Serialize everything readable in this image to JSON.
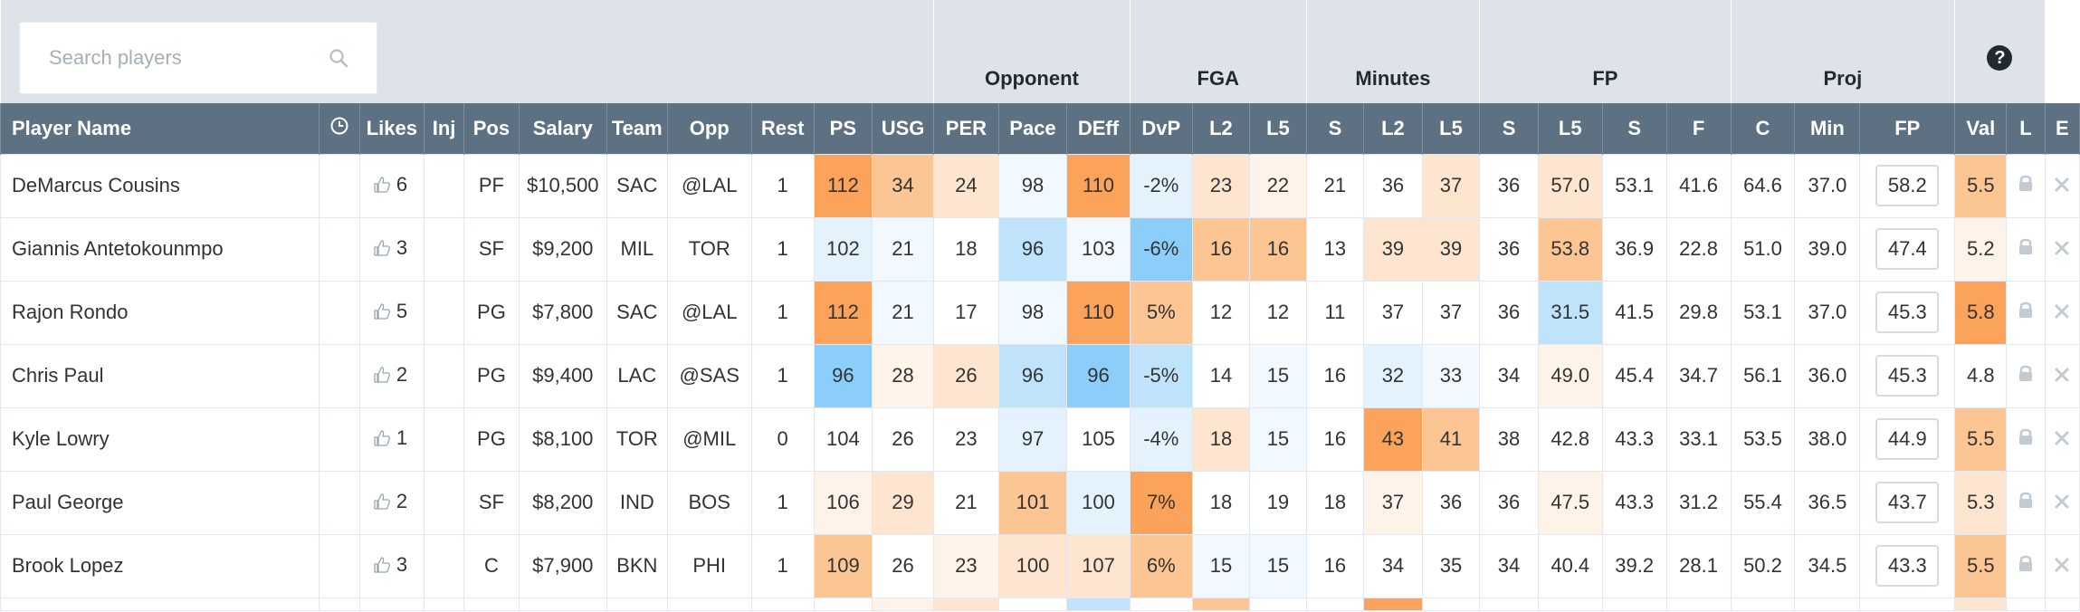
{
  "search": {
    "placeholder": "Search players"
  },
  "icons": {
    "search": "search-icon",
    "help": "help-icon",
    "clock": "clock-icon",
    "likes": "thumbs-up-icon",
    "lock": "lock-icon",
    "exclude": "close-icon"
  },
  "groups": {
    "opponent": "Opponent",
    "fga": "FGA",
    "minutes": "Minutes",
    "fp": "FP",
    "proj": "Proj",
    "help": "?"
  },
  "columns": {
    "name": "Player Name",
    "likes": "Likes",
    "inj": "Inj",
    "pos": "Pos",
    "salary": "Salary",
    "team": "Team",
    "opp": "Opp",
    "rest": "Rest",
    "ps": "PS",
    "usg": "USG",
    "per": "PER",
    "pace": "Pace",
    "deff": "DEff",
    "dvp": "DvP",
    "fga_l2": "L2",
    "fga_l5": "L5",
    "fga_s": "S",
    "min_l2": "L2",
    "min_l5": "L5",
    "min_s": "S",
    "fp_l5": "L5",
    "fp_s": "S",
    "fp_f": "F",
    "fp_c": "C",
    "proj_min": "Min",
    "proj_fp": "FP",
    "val": "Val",
    "lock": "L",
    "exclude": "E"
  },
  "colors": {
    "orange_dark": "#fba35a",
    "orange_mid": "#fcc594",
    "orange_light": "#fde5cf",
    "orange_faint": "#fef3e8",
    "blue_dark": "#8ccefa",
    "blue_mid": "#bee3fb",
    "blue_light": "#e4f2fd",
    "blue_faint": "#f2f9fe",
    "header_bg": "#5e7182",
    "group_bg": "#dde3e8"
  },
  "players": [
    {
      "name": "DeMarcus Cousins",
      "likes": "6",
      "inj": "",
      "pos": "PF",
      "salary": "$10,500",
      "team": "SAC",
      "opp": "@LAL",
      "rest": "1",
      "ps": "112",
      "usg": "34",
      "per": "24",
      "pace": "98",
      "deff": "110",
      "dvp": "-2%",
      "fga_l2": "23",
      "fga_l5": "22",
      "fga_s": "21",
      "min_l2": "36",
      "min_l5": "37",
      "min_s": "36",
      "fp_l5": "57.0",
      "fp_s": "53.1",
      "fp_f": "41.6",
      "fp_c": "64.6",
      "proj_min": "37.0",
      "proj_fp": "58.2",
      "val": "5.5"
    },
    {
      "name": "Giannis Antetokounmpo",
      "likes": "3",
      "inj": "",
      "pos": "SF",
      "salary": "$9,200",
      "team": "MIL",
      "opp": "TOR",
      "rest": "1",
      "ps": "102",
      "usg": "21",
      "per": "18",
      "pace": "96",
      "deff": "103",
      "dvp": "-6%",
      "fga_l2": "16",
      "fga_l5": "16",
      "fga_s": "13",
      "min_l2": "39",
      "min_l5": "39",
      "min_s": "36",
      "fp_l5": "53.8",
      "fp_s": "36.9",
      "fp_f": "22.8",
      "fp_c": "51.0",
      "proj_min": "39.0",
      "proj_fp": "47.4",
      "val": "5.2"
    },
    {
      "name": "Rajon Rondo",
      "likes": "5",
      "inj": "",
      "pos": "PG",
      "salary": "$7,800",
      "team": "SAC",
      "opp": "@LAL",
      "rest": "1",
      "ps": "112",
      "usg": "21",
      "per": "17",
      "pace": "98",
      "deff": "110",
      "dvp": "5%",
      "fga_l2": "12",
      "fga_l5": "12",
      "fga_s": "11",
      "min_l2": "37",
      "min_l5": "37",
      "min_s": "36",
      "fp_l5": "31.5",
      "fp_s": "41.5",
      "fp_f": "29.8",
      "fp_c": "53.1",
      "proj_min": "37.0",
      "proj_fp": "45.3",
      "val": "5.8"
    },
    {
      "name": "Chris Paul",
      "likes": "2",
      "inj": "",
      "pos": "PG",
      "salary": "$9,400",
      "team": "LAC",
      "opp": "@SAS",
      "rest": "1",
      "ps": "96",
      "usg": "28",
      "per": "26",
      "pace": "96",
      "deff": "96",
      "dvp": "-5%",
      "fga_l2": "14",
      "fga_l5": "15",
      "fga_s": "16",
      "min_l2": "32",
      "min_l5": "33",
      "min_s": "34",
      "fp_l5": "49.0",
      "fp_s": "45.4",
      "fp_f": "34.7",
      "fp_c": "56.1",
      "proj_min": "36.0",
      "proj_fp": "45.3",
      "val": "4.8"
    },
    {
      "name": "Kyle Lowry",
      "likes": "1",
      "inj": "",
      "pos": "PG",
      "salary": "$8,100",
      "team": "TOR",
      "opp": "@MIL",
      "rest": "0",
      "ps": "104",
      "usg": "26",
      "per": "23",
      "pace": "97",
      "deff": "105",
      "dvp": "-4%",
      "fga_l2": "18",
      "fga_l5": "15",
      "fga_s": "16",
      "min_l2": "43",
      "min_l5": "41",
      "min_s": "38",
      "fp_l5": "42.8",
      "fp_s": "43.3",
      "fp_f": "33.1",
      "fp_c": "53.5",
      "proj_min": "38.0",
      "proj_fp": "44.9",
      "val": "5.5"
    },
    {
      "name": "Paul George",
      "likes": "2",
      "inj": "",
      "pos": "SF",
      "salary": "$8,200",
      "team": "IND",
      "opp": "BOS",
      "rest": "1",
      "ps": "106",
      "usg": "29",
      "per": "21",
      "pace": "101",
      "deff": "100",
      "dvp": "7%",
      "fga_l2": "18",
      "fga_l5": "19",
      "fga_s": "18",
      "min_l2": "37",
      "min_l5": "36",
      "min_s": "36",
      "fp_l5": "47.5",
      "fp_s": "43.3",
      "fp_f": "31.2",
      "fp_c": "55.4",
      "proj_min": "36.5",
      "proj_fp": "43.7",
      "val": "5.3"
    },
    {
      "name": "Brook Lopez",
      "likes": "3",
      "inj": "",
      "pos": "C",
      "salary": "$7,900",
      "team": "BKN",
      "opp": "PHI",
      "rest": "1",
      "ps": "109",
      "usg": "26",
      "per": "23",
      "pace": "100",
      "deff": "107",
      "dvp": "6%",
      "fga_l2": "15",
      "fga_l5": "15",
      "fga_s": "16",
      "min_l2": "34",
      "min_l5": "35",
      "min_s": "34",
      "fp_l5": "40.4",
      "fp_s": "39.2",
      "fp_f": "28.1",
      "fp_c": "50.2",
      "proj_min": "34.5",
      "proj_fp": "43.3",
      "val": "5.5"
    }
  ]
}
